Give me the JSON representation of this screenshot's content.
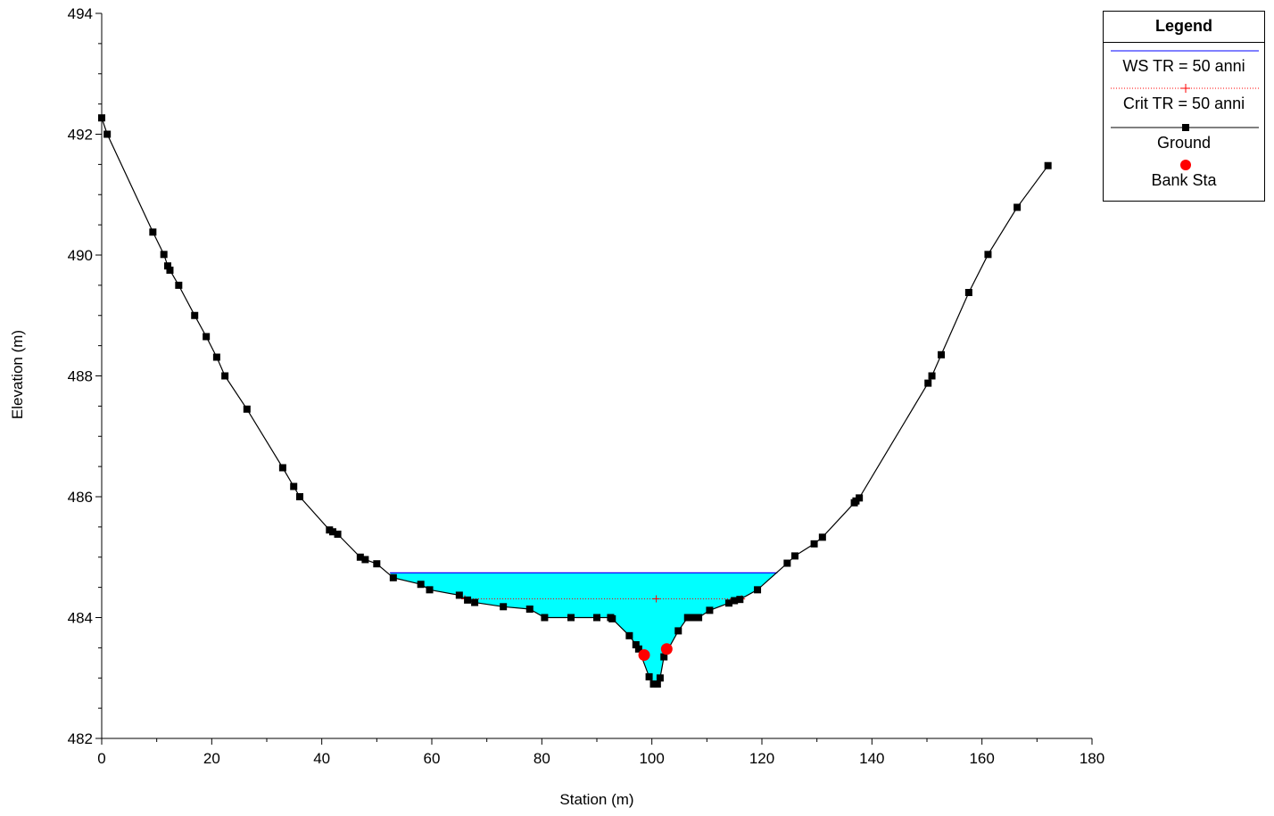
{
  "chart_data": {
    "type": "line",
    "xlabel": "Station (m)",
    "ylabel": "Elevation (m)",
    "xlim": [
      0,
      180
    ],
    "ylim": [
      482,
      494
    ],
    "x_ticks": [
      0,
      20,
      40,
      60,
      80,
      100,
      120,
      140,
      160,
      180
    ],
    "y_ticks": [
      482,
      484,
      486,
      488,
      490,
      492,
      494
    ],
    "grid": false,
    "legend_position": "top-right",
    "legend": {
      "title": "Legend",
      "entries": [
        {
          "label": "WS TR = 50 anni",
          "style": "line",
          "color": "#0000ff"
        },
        {
          "label": "Crit TR = 50 anni",
          "style": "dotted-plus",
          "color": "#ff0000"
        },
        {
          "label": "Ground",
          "style": "line-square",
          "color": "#000000"
        },
        {
          "label": "Bank Sta",
          "style": "circle",
          "color": "#ff0000"
        }
      ]
    },
    "series": [
      {
        "name": "Ground",
        "color": "#000000",
        "points": [
          [
            0.0,
            492.27
          ],
          [
            1.0,
            492.0
          ],
          [
            9.3,
            490.38
          ],
          [
            11.3,
            490.01
          ],
          [
            12.0,
            489.82
          ],
          [
            12.4,
            489.75
          ],
          [
            14.0,
            489.5
          ],
          [
            16.9,
            489.0
          ],
          [
            19.0,
            488.65
          ],
          [
            20.9,
            488.31
          ],
          [
            22.4,
            488.0
          ],
          [
            26.4,
            487.45
          ],
          [
            32.9,
            486.48
          ],
          [
            34.9,
            486.17
          ],
          [
            36.0,
            486.0
          ],
          [
            41.4,
            485.45
          ],
          [
            42.0,
            485.42
          ],
          [
            42.9,
            485.38
          ],
          [
            47.0,
            485.0
          ],
          [
            47.9,
            484.96
          ],
          [
            50.0,
            484.89
          ],
          [
            53.0,
            484.66
          ],
          [
            58.0,
            484.55
          ],
          [
            59.6,
            484.46
          ],
          [
            65.0,
            484.37
          ],
          [
            66.5,
            484.29
          ],
          [
            67.8,
            484.25
          ],
          [
            73.0,
            484.18
          ],
          [
            77.8,
            484.14
          ],
          [
            80.5,
            484.0
          ],
          [
            85.3,
            484.0
          ],
          [
            90.0,
            484.0
          ],
          [
            92.5,
            484.0
          ],
          [
            92.8,
            483.98
          ],
          [
            95.9,
            483.7
          ],
          [
            97.1,
            483.55
          ],
          [
            97.6,
            483.48
          ],
          [
            99.5,
            483.02
          ],
          [
            100.3,
            482.9
          ],
          [
            101.0,
            482.9
          ],
          [
            101.5,
            483.0
          ],
          [
            102.2,
            483.35
          ],
          [
            104.8,
            483.78
          ],
          [
            106.5,
            484.0
          ],
          [
            107.5,
            484.0
          ],
          [
            108.5,
            484.0
          ],
          [
            110.5,
            484.12
          ],
          [
            114.0,
            484.24
          ],
          [
            115.0,
            484.28
          ],
          [
            116.0,
            484.3
          ],
          [
            119.2,
            484.46
          ],
          [
            124.6,
            484.9
          ],
          [
            126.0,
            485.02
          ],
          [
            129.5,
            485.22
          ],
          [
            131.0,
            485.33
          ],
          [
            136.8,
            485.9
          ],
          [
            137.1,
            485.93
          ],
          [
            137.7,
            485.98
          ],
          [
            150.2,
            487.88
          ],
          [
            150.9,
            488.0
          ],
          [
            152.6,
            488.35
          ],
          [
            157.6,
            489.38
          ],
          [
            161.1,
            490.01
          ],
          [
            166.4,
            490.79
          ],
          [
            172.0,
            491.48
          ]
        ]
      }
    ],
    "water_surface": {
      "name": "WS TR = 50 anni",
      "elevation": 484.74,
      "x_left": 52.4,
      "x_right": 122.8,
      "fill_color": "#00ffff",
      "line_color": "#0000ff"
    },
    "critical_depth": {
      "name": "Crit TR = 50 anni",
      "elevation": 484.31,
      "x_left": 66.0,
      "x_right": 116.3,
      "marker_x": [
        66.0,
        100.8,
        116.3
      ],
      "color": "#ff0000"
    },
    "bank_stations": [
      [
        98.6,
        483.38
      ],
      [
        102.7,
        483.48
      ]
    ]
  }
}
